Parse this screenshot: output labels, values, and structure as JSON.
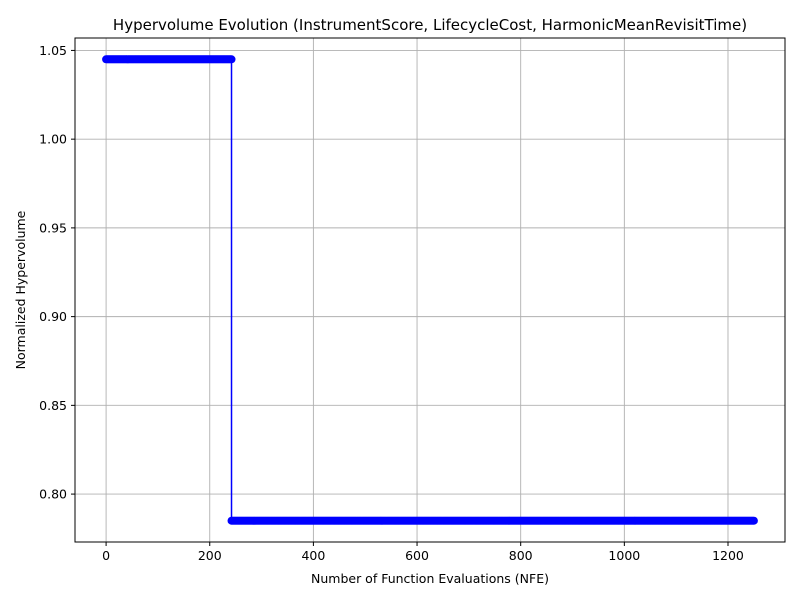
{
  "chart_data": {
    "type": "line",
    "title": "Hypervolume Evolution (InstrumentScore, LifecycleCost, HarmonicMeanRevisitTime)",
    "xlabel": "Number of Function Evaluations (NFE)",
    "ylabel": "Normalized Hypervolume",
    "xlim": [
      -60,
      1310
    ],
    "ylim": [
      0.773,
      1.057
    ],
    "xticks": [
      0,
      200,
      400,
      600,
      800,
      1000,
      1200
    ],
    "yticks": [
      0.8,
      0.85,
      0.9,
      0.95,
      1.0,
      1.05
    ],
    "xtick_labels": [
      "0",
      "200",
      "400",
      "600",
      "800",
      "1000",
      "1200"
    ],
    "ytick_labels": [
      "0.80",
      "0.85",
      "0.90",
      "0.95",
      "1.00",
      "1.05"
    ],
    "grid": true,
    "series": [
      {
        "color": "#0000ff",
        "marker": "circle",
        "segments": [
          {
            "x_start": 0,
            "x_end": 242,
            "step": 2,
            "y": 1.045
          },
          {
            "x_start": 242,
            "x_end": 1250,
            "step": 2,
            "y": 0.785
          }
        ]
      }
    ]
  }
}
